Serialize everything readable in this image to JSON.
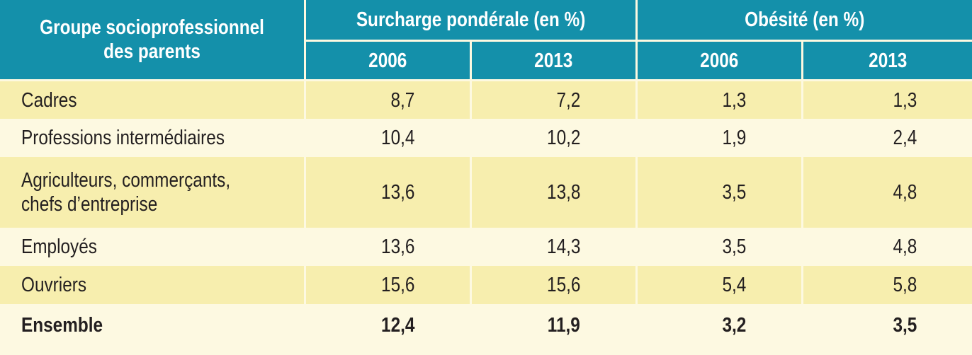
{
  "table": {
    "header": {
      "group": [
        "Groupe socioprofessionnel",
        "des parents"
      ],
      "surcharge": "Surcharge pondérale (en %)",
      "obesite": "Obésité (en %)",
      "years": [
        "2006",
        "2013",
        "2006",
        "2013"
      ]
    },
    "rows": [
      [
        [
          "Cadres"
        ],
        "8,7",
        "7,2",
        "1,3",
        "1,3"
      ],
      [
        [
          "Professions intermédiaires"
        ],
        "10,4",
        "10,2",
        "1,9",
        "2,4"
      ],
      [
        [
          "Agriculteurs, commerçants,",
          "chefs d’entreprise"
        ],
        "13,6",
        "13,8",
        "3,5",
        "4,8"
      ],
      [
        [
          "Employés"
        ],
        "13,6",
        "14,3",
        "3,5",
        "4,8"
      ],
      [
        [
          "Ouvriers"
        ],
        "15,6",
        "15,6",
        "5,4",
        "5,8"
      ],
      [
        [
          "Ensemble"
        ],
        "12,4",
        "11,9",
        "3,2",
        "3,5"
      ]
    ]
  }
}
